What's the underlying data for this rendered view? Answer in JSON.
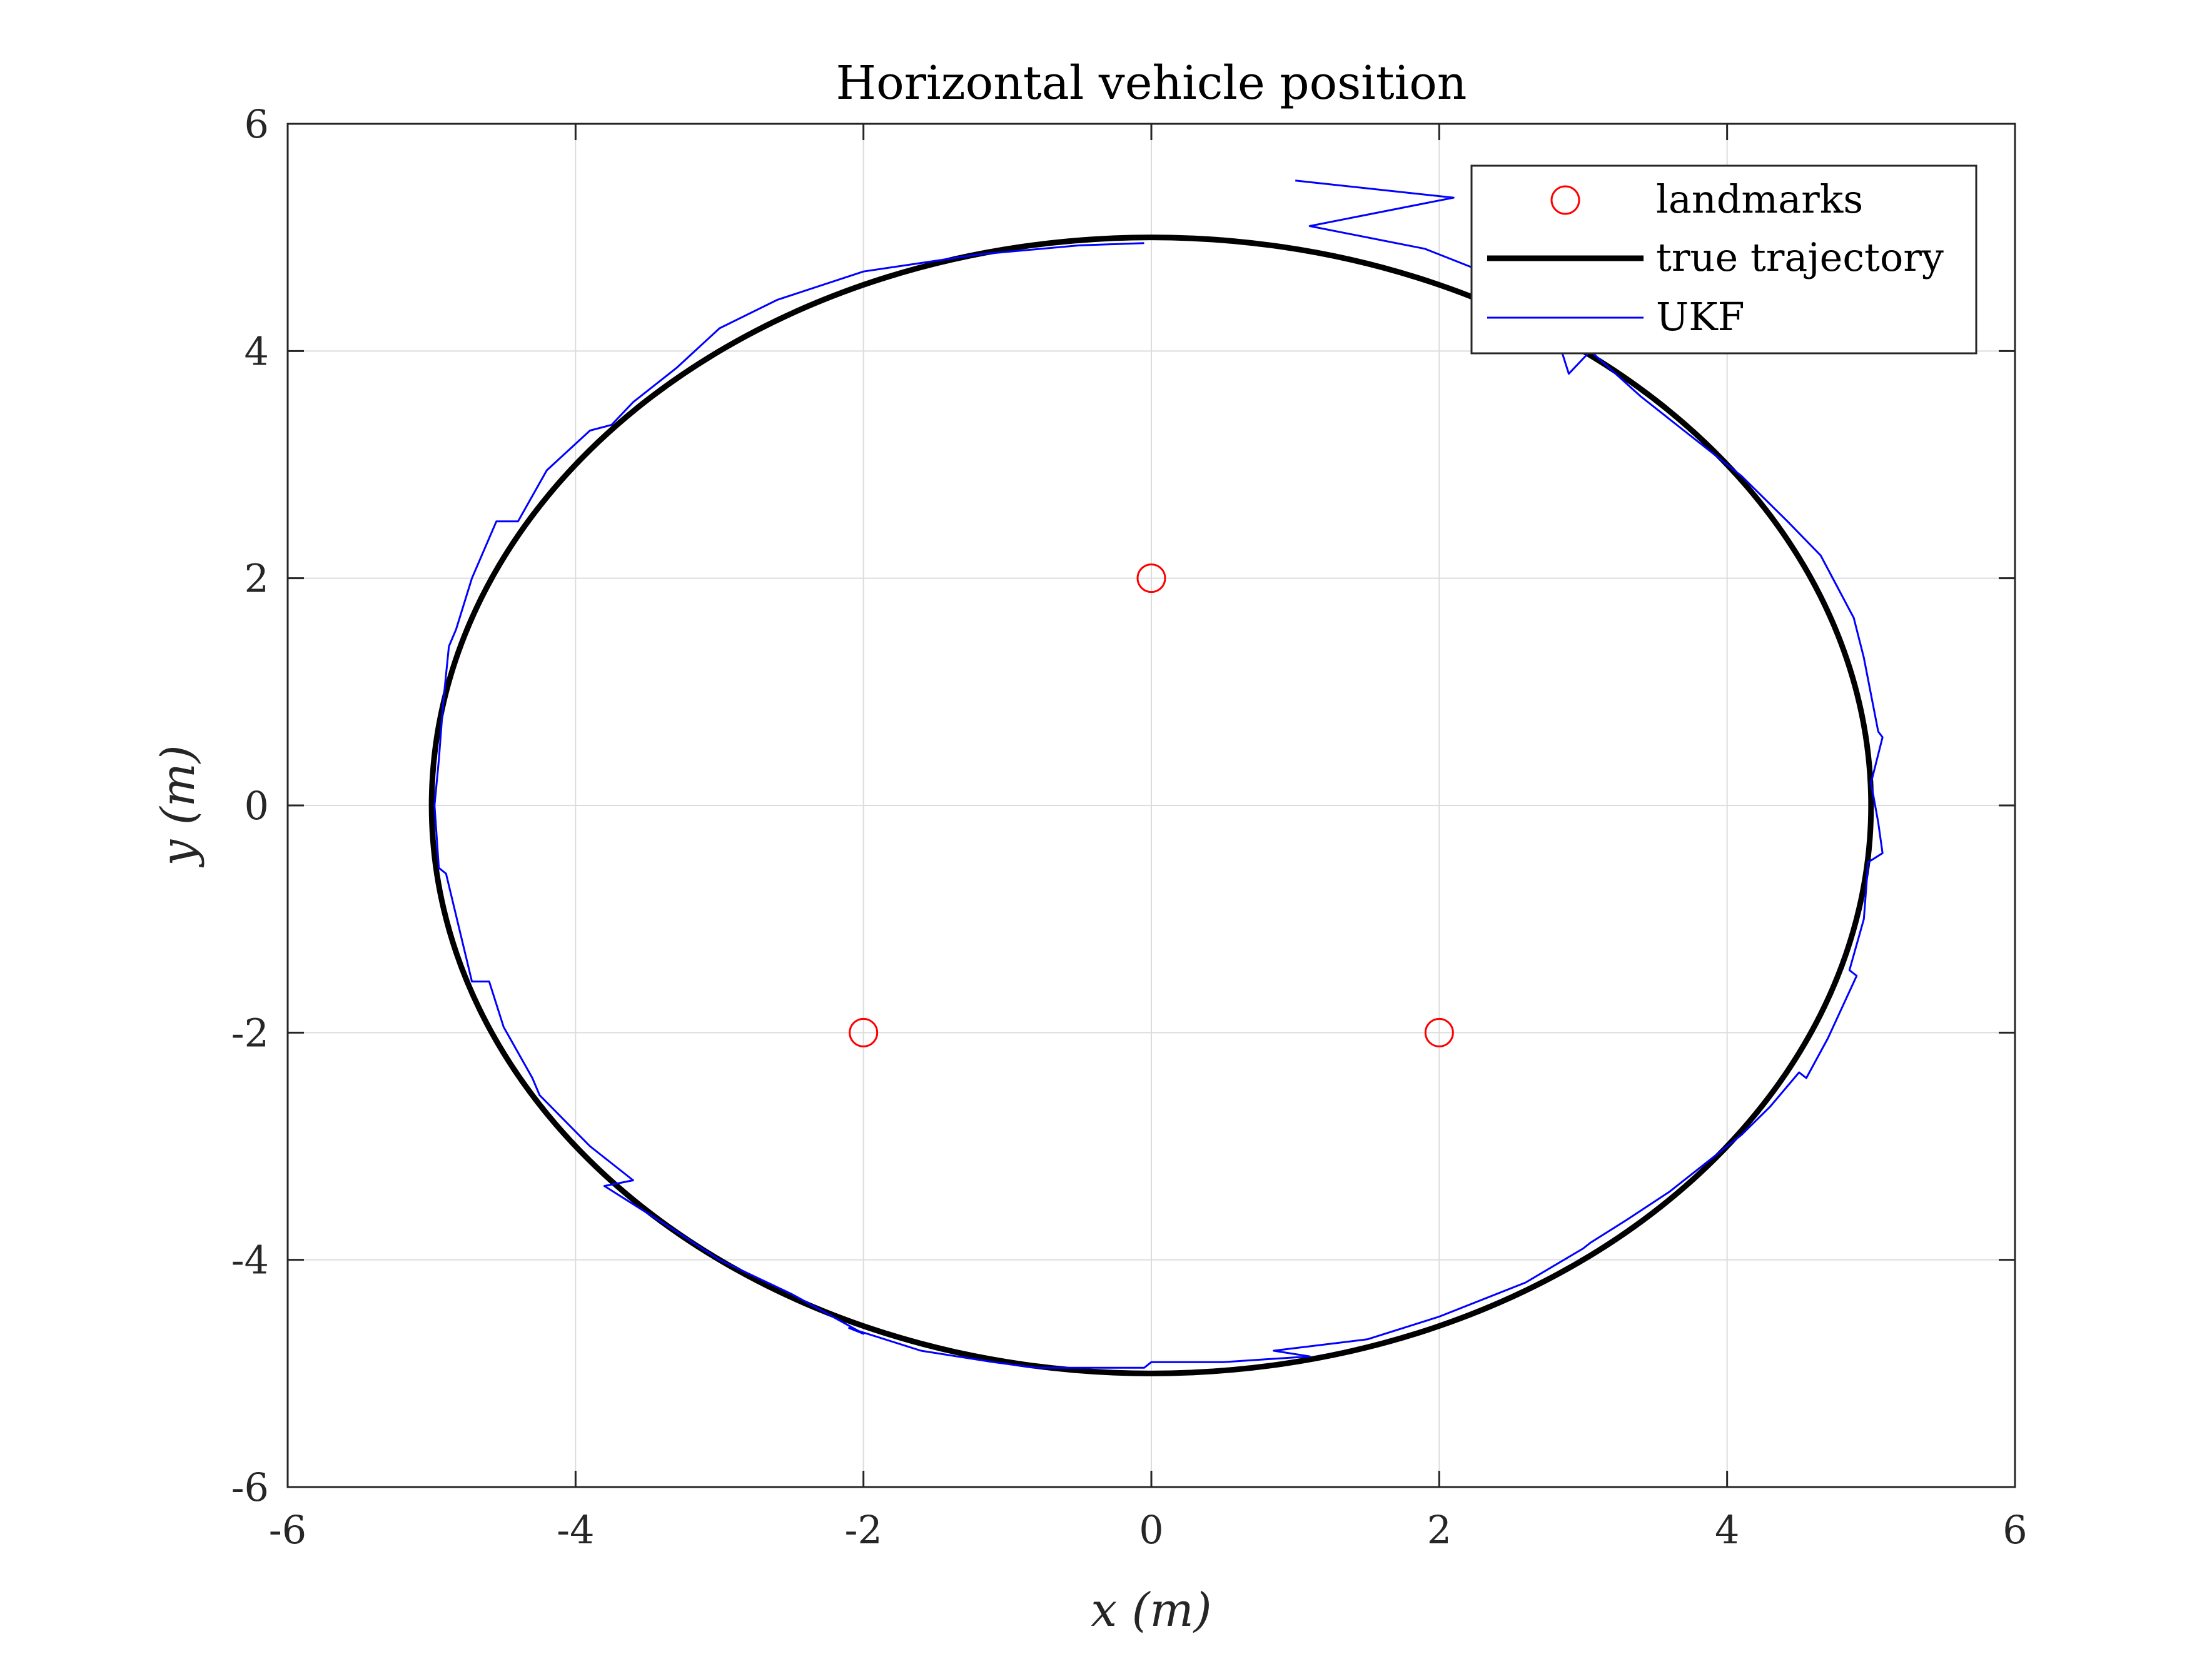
{
  "chart_data": {
    "type": "line",
    "title": "Horizontal vehicle position",
    "xlabel": "x (m)",
    "ylabel": "y (m)",
    "xlim": [
      -6,
      6
    ],
    "ylim": [
      -6,
      6
    ],
    "xticks": [
      -6,
      -4,
      -2,
      0,
      2,
      4,
      6
    ],
    "yticks": [
      -6,
      -4,
      -2,
      0,
      2,
      4,
      6
    ],
    "xtick_labels": [
      "-6",
      "-4",
      "-2",
      "0",
      "2",
      "4",
      "6"
    ],
    "ytick_labels": [
      "-6",
      "-4",
      "-2",
      "0",
      "2",
      "4",
      "6"
    ],
    "grid": true,
    "legend_position": "top-right",
    "legend": [
      "landmarks",
      "true trajectory",
      "UKF"
    ],
    "colors": {
      "landmarks": "#ff0000",
      "true_trajectory": "#000000",
      "ukf": "#0000ff",
      "grid": "#dcdcdc",
      "axis": "#262626"
    },
    "series": [
      {
        "name": "landmarks",
        "kind": "scatter",
        "marker": "circle",
        "x": [
          0,
          -2,
          2
        ],
        "y": [
          2,
          -2,
          -2
        ]
      },
      {
        "name": "true trajectory",
        "kind": "line",
        "shape": "circle",
        "center": [
          0,
          0
        ],
        "radius": 5
      },
      {
        "name": "UKF",
        "kind": "line",
        "x": [
          1.0,
          2.1,
          1.1,
          1.9,
          2.0,
          2.5,
          2.85,
          2.9,
          3.05,
          3.4,
          3.7,
          4.1,
          4.42,
          4.65,
          4.88,
          4.95,
          5.05,
          5.08,
          5.0,
          5.05,
          5.08,
          4.98,
          4.95,
          4.85,
          4.9,
          4.7,
          4.55,
          4.5,
          4.3,
          4.1,
          3.9,
          3.6,
          3.3,
          3.05,
          3.0,
          2.6,
          2.0,
          1.5,
          0.85,
          1.1,
          0.5,
          0.0,
          -0.05,
          -0.3,
          -0.8,
          -1.1,
          -1.6,
          -2.1,
          -2.0,
          -2.5,
          -3.0,
          -3.3,
          -3.8,
          -3.6,
          -3.9,
          -4.25,
          -4.3,
          -4.5,
          -4.6,
          -4.72,
          -4.9,
          -4.95,
          -4.98,
          -4.95,
          -4.92,
          -4.88,
          -4.83,
          -4.72,
          -4.55,
          -4.4,
          -4.2,
          -3.9,
          -3.75,
          -3.6,
          -3.3,
          -3.0,
          -2.6,
          -2.0,
          -1.2,
          -0.5,
          -0.05
        ],
        "y": [
          5.5,
          5.35,
          5.1,
          4.9,
          4.85,
          4.6,
          4.0,
          3.8,
          4.0,
          3.6,
          3.3,
          2.9,
          2.5,
          2.2,
          1.65,
          1.3,
          0.65,
          0.6,
          0.2,
          -0.15,
          -0.42,
          -0.5,
          -1.0,
          -1.45,
          -1.5,
          -2.05,
          -2.4,
          -2.35,
          -2.65,
          -2.9,
          -3.1,
          -3.4,
          -3.65,
          -3.85,
          -3.9,
          -4.2,
          -4.5,
          -4.7,
          -4.8,
          -4.85,
          -4.9,
          -4.9,
          -4.95,
          -4.95,
          -4.95,
          -4.9,
          -4.8,
          -4.6,
          -4.65,
          -4.3,
          -4.0,
          -3.75,
          -3.35,
          -3.3,
          -3.0,
          -2.55,
          -2.4,
          -1.95,
          -1.55,
          -1.55,
          -0.6,
          -0.55,
          0.0,
          0.4,
          0.9,
          1.4,
          1.55,
          2.0,
          2.5,
          2.5,
          2.95,
          3.3,
          3.35,
          3.55,
          3.85,
          4.2,
          4.45,
          4.7,
          4.85,
          4.93,
          4.95
        ]
      }
    ]
  }
}
